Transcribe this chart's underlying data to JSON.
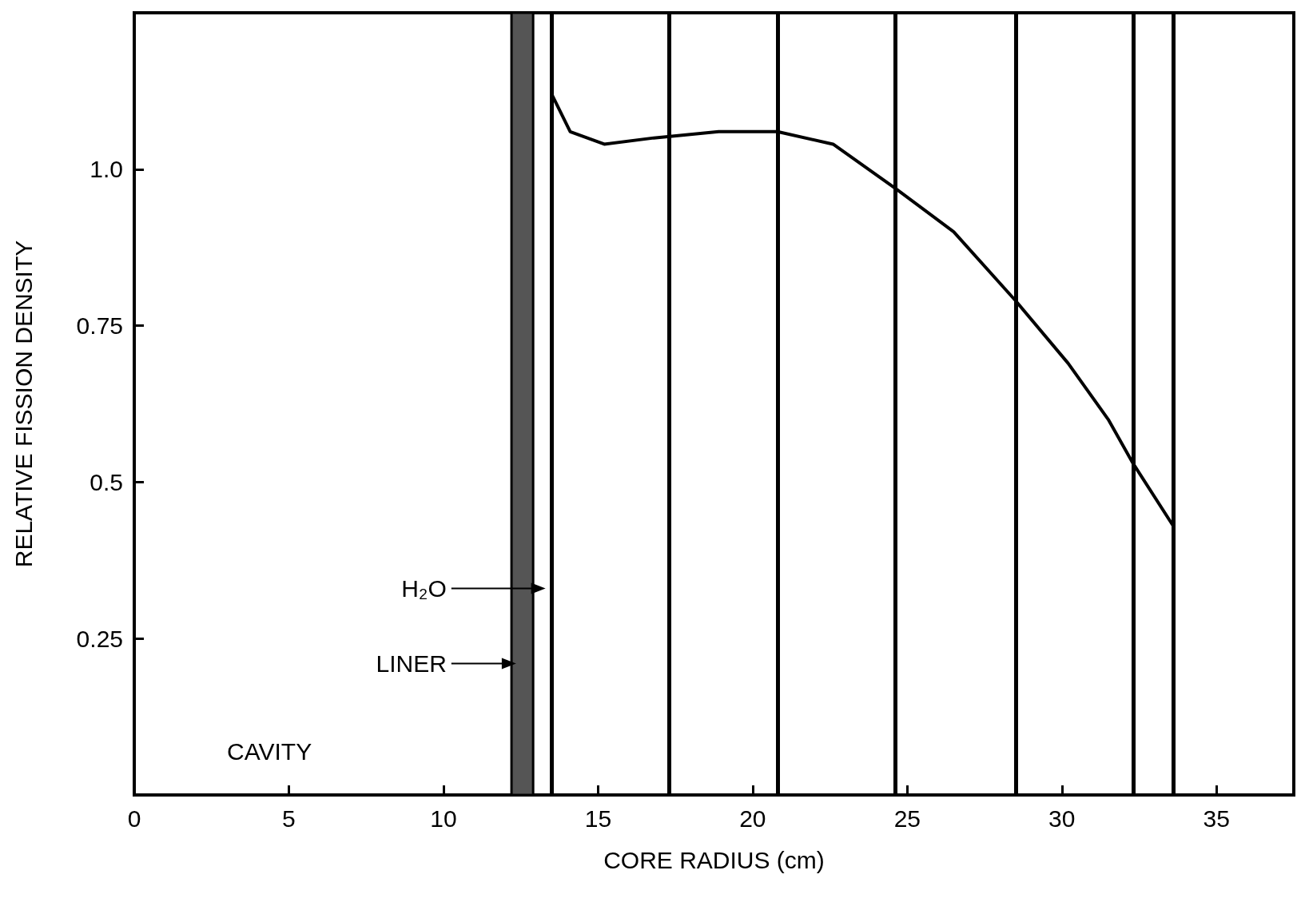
{
  "chart_data": {
    "type": "line",
    "xlabel": "CORE RADIUS (cm)",
    "ylabel": "RELATIVE FISSION DENSITY",
    "x": [
      13.5,
      14.1,
      15.2,
      16.8,
      18.9,
      20.8,
      22.6,
      24.6,
      26.5,
      28.5,
      30.2,
      31.5,
      32.3,
      33.6
    ],
    "series": [
      {
        "color": "#000000",
        "values": [
          1.12,
          1.06,
          1.04,
          1.05,
          1.06,
          1.06,
          1.04,
          0.97,
          0.9,
          0.79,
          0.69,
          0.6,
          0.53,
          0.43
        ]
      }
    ],
    "xlim": [
      0,
      37.5
    ],
    "xticks": [
      0,
      5,
      10,
      15,
      20,
      25,
      30,
      35
    ],
    "ylim": [
      0,
      1.25
    ],
    "yticks": [
      0.25,
      0.5,
      0.75,
      {
        "value": 1,
        "label": "1.0"
      }
    ],
    "grid": false,
    "marker": "none",
    "line_style": "solid",
    "ref_lines": [
      {
        "axis": "x",
        "value": 13.5
      },
      {
        "axis": "x",
        "value": 17.3
      },
      {
        "axis": "x",
        "value": 20.8
      },
      {
        "axis": "x",
        "value": 24.6
      },
      {
        "axis": "x",
        "value": 28.5
      },
      {
        "axis": "x",
        "value": 32.3
      },
      {
        "axis": "x",
        "value": 33.6
      }
    ],
    "bands": [
      {
        "axis": "x",
        "from": 12.2,
        "to": 12.9,
        "color": "#555555"
      }
    ],
    "annotations": [
      "H₂O",
      "LINER",
      "CAVITY"
    ]
  }
}
